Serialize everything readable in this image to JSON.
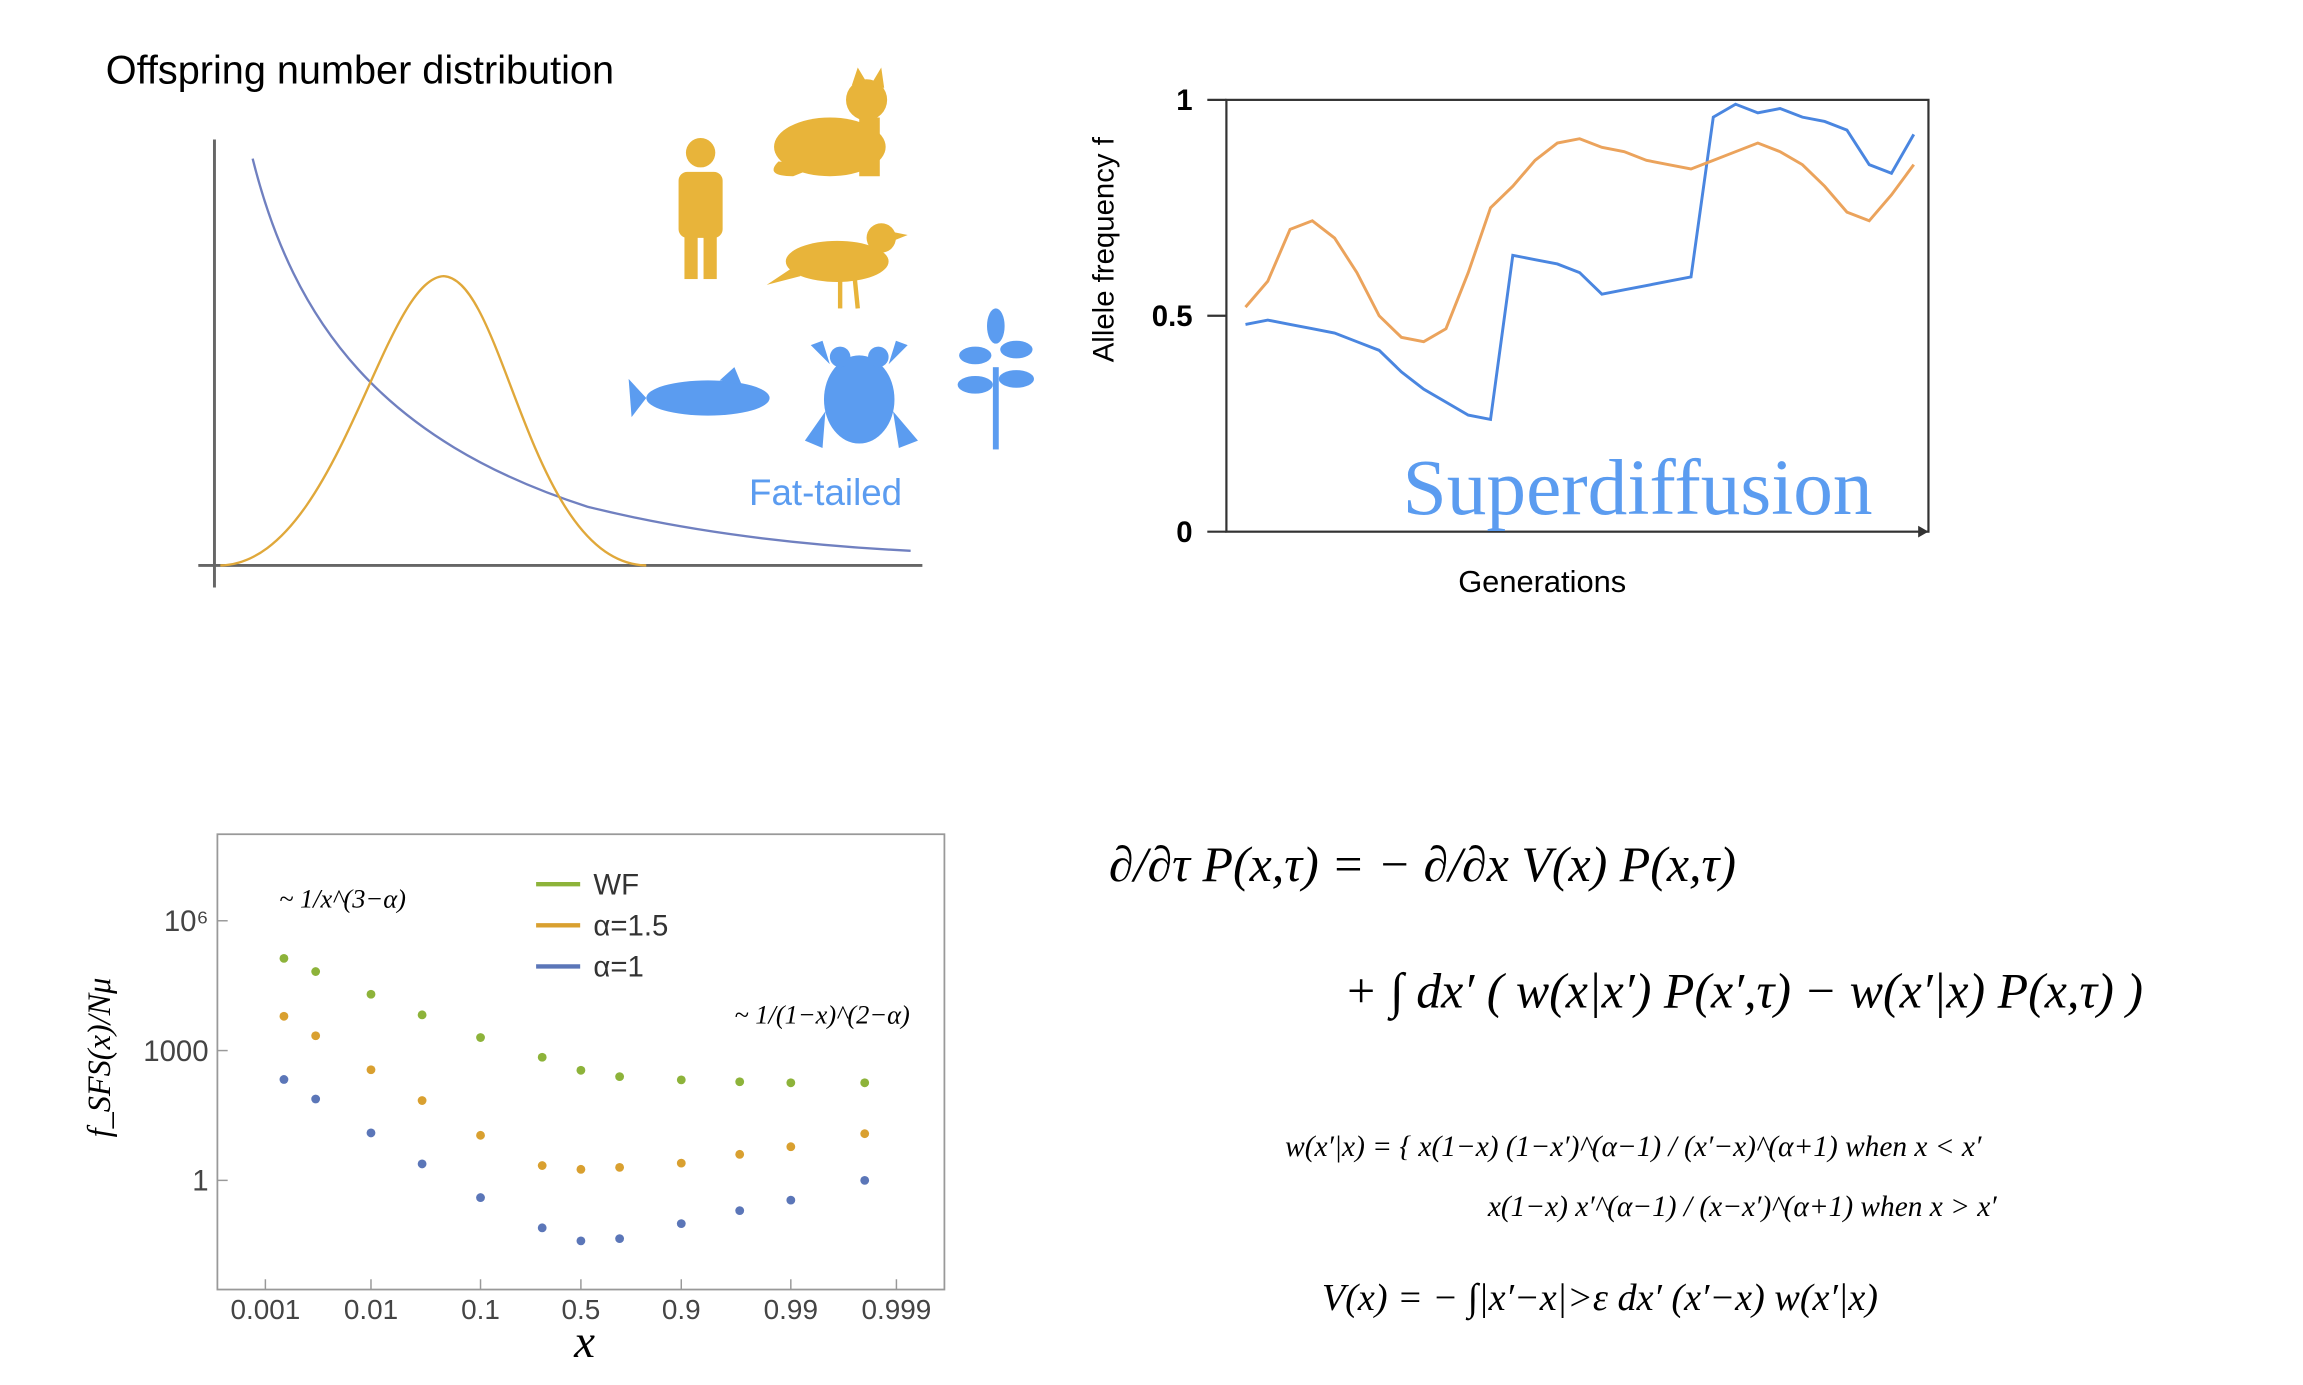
{
  "panel_a": {
    "title": "Offspring number distribution",
    "label": "Fat-tailed"
  },
  "panel_b": {
    "type": "line",
    "ylabel": "Allele frequency f",
    "xlabel": "Generations",
    "annotation": "Superdiffusion",
    "ylim": [
      0,
      1
    ],
    "yticks": [
      0,
      0.5,
      1
    ],
    "series": [
      {
        "color": "#4a86e0",
        "step": true,
        "values": [
          0.48,
          0.49,
          0.48,
          0.47,
          0.46,
          0.44,
          0.42,
          0.37,
          0.33,
          0.3,
          0.27,
          0.26,
          0.64,
          0.63,
          0.62,
          0.6,
          0.55,
          0.56,
          0.57,
          0.58,
          0.59,
          0.96,
          0.99,
          0.97,
          0.98,
          0.96,
          0.95,
          0.93,
          0.85,
          0.83,
          0.92
        ]
      },
      {
        "color": "#eba35c",
        "values": [
          0.52,
          0.58,
          0.7,
          0.72,
          0.68,
          0.6,
          0.5,
          0.45,
          0.44,
          0.47,
          0.6,
          0.75,
          0.8,
          0.86,
          0.9,
          0.91,
          0.89,
          0.88,
          0.86,
          0.85,
          0.84,
          0.86,
          0.88,
          0.9,
          0.88,
          0.85,
          0.8,
          0.74,
          0.72,
          0.78,
          0.85
        ]
      }
    ]
  },
  "chart_data": {
    "type": "scatter",
    "ylabel": "f_SFS(x)/Nμ",
    "xlabel": "x",
    "xscale": "logit",
    "yscale": "log",
    "xlim": [
      0.00035,
      0.99965
    ],
    "ylim": [
      0.003,
      100000000
    ],
    "xticks": [
      0.001,
      0.01,
      0.1,
      0.5,
      0.9,
      0.99,
      0.999
    ],
    "yticks": [
      {
        "value": 1000000,
        "label": "10⁶"
      },
      1000,
      1
    ],
    "annotations": [
      "~ 1/x^(3−α)",
      "~ 1/(1−x)^(2−α)"
    ],
    "legend": "top",
    "x": [
      0.0015,
      0.003,
      0.01,
      0.03,
      0.1,
      0.3,
      0.5,
      0.7,
      0.9,
      0.97,
      0.99,
      0.998
    ],
    "series": [
      {
        "name": "WF",
        "color": "#8db33a",
        "values": [
          135000,
          67000,
          20000,
          6700,
          2000,
          700,
          350,
          250,
          210,
          190,
          180,
          180
        ]
      },
      {
        "name": "α=1.5",
        "color": "#d9a030",
        "values": [
          6200,
          2200,
          360,
          70,
          11,
          2.2,
          1.8,
          2.0,
          2.5,
          4,
          6,
          12
        ]
      },
      {
        "name": "α=1",
        "color": "#5b76b8",
        "values": [
          215,
          76,
          12.5,
          2.4,
          0.4,
          0.08,
          0.04,
          0.045,
          0.1,
          0.2,
          0.35,
          1.0
        ]
      }
    ]
  },
  "equations": [
    "∂/∂τ P(x,τ) = − ∂/∂x V(x) P(x,τ)",
    "+ ∫ dx′ ( w(x|x′) P(x′,τ) − w(x′|x) P(x,τ) )",
    "w(x′|x) = { x(1−x) (1−x′)^(α−1) / (x′−x)^(α+1)   when x < x′",
    "x(1−x) x′^(α−1) / (x−x′)^(α+1)   when x > x′",
    "V(x) = − ∫|x′−x|>ε dx′ (x′−x) w(x′|x)"
  ]
}
